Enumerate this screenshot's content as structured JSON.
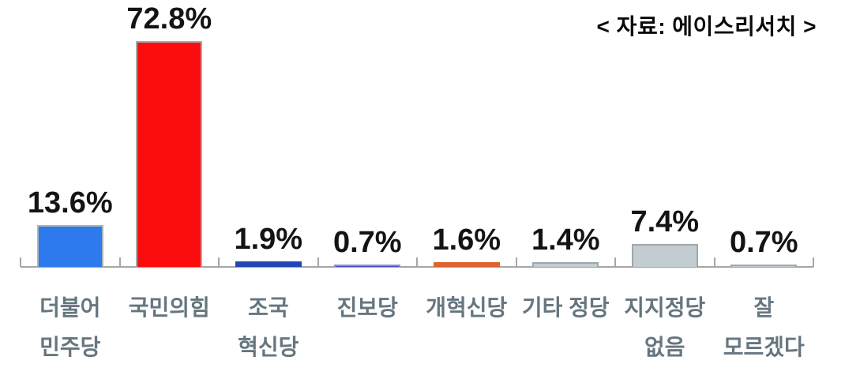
{
  "source_label": "< 자료: 에이스리서치 >",
  "chart_data": {
    "type": "bar",
    "title": "",
    "xlabel": "",
    "ylabel": "",
    "categories": [
      "더불어민주당",
      "국민의힘",
      "조국혁신당",
      "진보당",
      "개혁신당",
      "기타 정당",
      "지지정당 없음",
      "잘 모르겠다"
    ],
    "category_display": [
      "더불어\n민주당",
      "국민의힘",
      "조국\n혁신당",
      "진보당",
      "개혁신당",
      "기타 정당",
      "지지정당\n없음",
      "잘\n모르겠다"
    ],
    "values": [
      13.6,
      72.8,
      1.9,
      0.7,
      1.6,
      1.4,
      7.4,
      0.7
    ],
    "value_labels": [
      "13.6%",
      "72.8%",
      "1.9%",
      "0.7%",
      "1.6%",
      "1.4%",
      "7.4%",
      "0.7%"
    ],
    "bar_colors": [
      "#2c7aec",
      "#fb0d0d",
      "#2345b5",
      "#504ec0",
      "#dc6230",
      "#c3ccd1",
      "#c3ccd1",
      "#c3ccd1"
    ],
    "bar_border_colors": [
      "#a9b3ba",
      "#ababab",
      "#2345b5",
      "#8b8ad8",
      "#dc6230",
      "#9ea8ad",
      "#9ea8ad",
      "#9ea8ad"
    ],
    "category_label_color": "#66767f",
    "value_label_color": "#141414",
    "axis_color": "#a6a6a6",
    "ylim": [
      0,
      76
    ],
    "grid": false,
    "legend": false,
    "data_labels_shown": true,
    "value_suffix": "%"
  }
}
